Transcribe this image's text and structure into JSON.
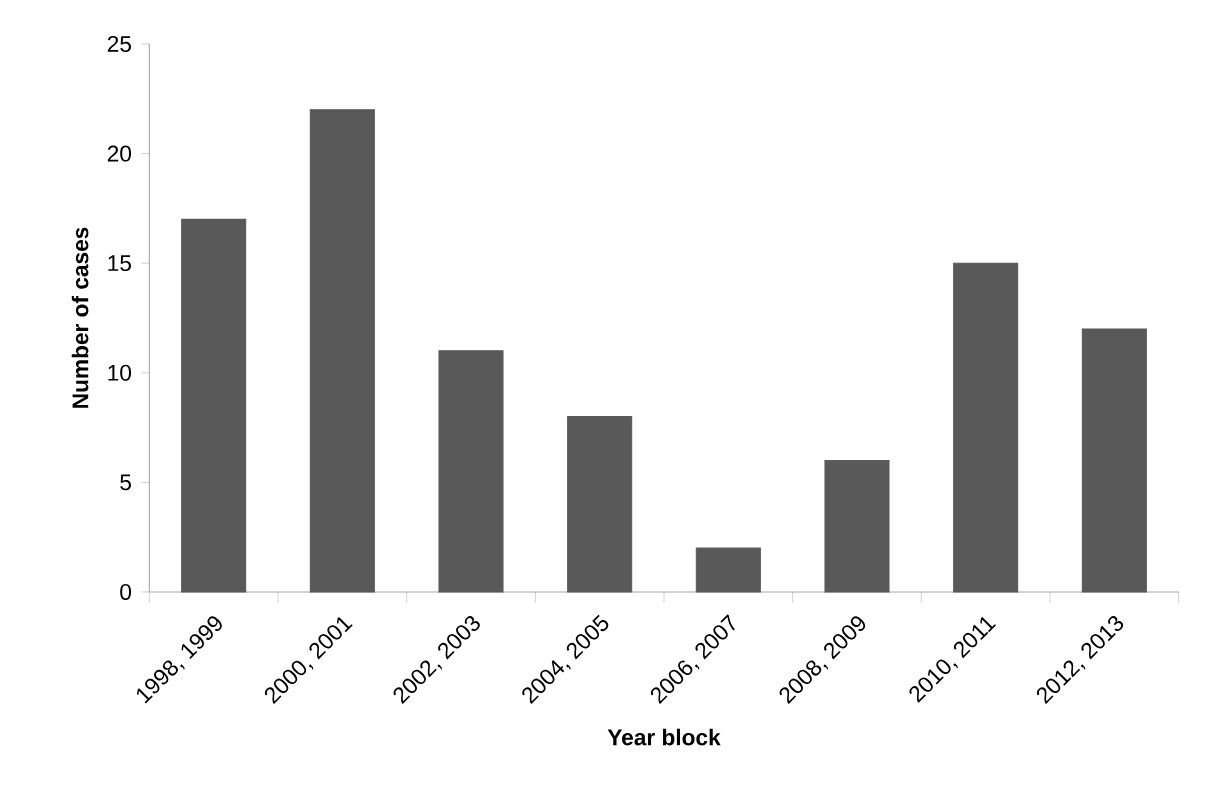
{
  "chart_data": {
    "type": "bar",
    "xlabel": "Year block",
    "ylabel": "Number of cases",
    "categories": [
      "1998, 1999",
      "2000, 2001",
      "2002, 2003",
      "2004, 2005",
      "2006, 2007",
      "2008, 2009",
      "2010, 2011",
      "2012, 2013"
    ],
    "values": [
      17,
      22,
      11,
      8,
      2,
      6,
      15,
      12
    ],
    "color": "#595959",
    "ylim": [
      0,
      25
    ],
    "yticks": [
      0,
      5,
      10,
      15,
      20,
      25
    ],
    "grid": false
  }
}
